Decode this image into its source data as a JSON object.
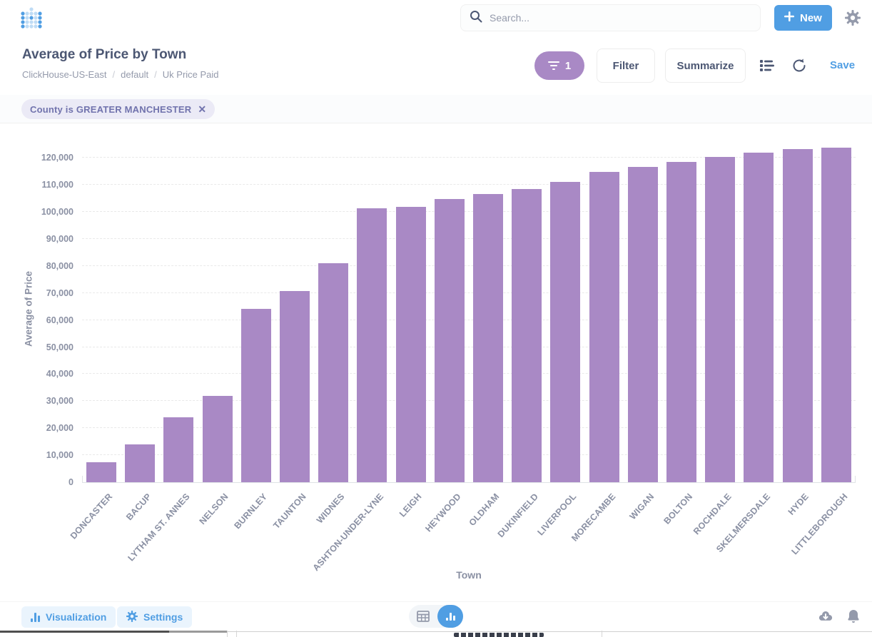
{
  "nav": {
    "search_placeholder": "Search...",
    "new_button_label": "New"
  },
  "header": {
    "title": "Average of Price by Town",
    "breadcrumb": [
      "ClickHouse-US-East",
      "default",
      "Uk Price Paid"
    ],
    "breadcrumb_separator": "/",
    "filter_count": "1",
    "filter_button_label": "Filter",
    "summarize_button_label": "Summarize",
    "save_label": "Save"
  },
  "filters": [
    {
      "label": "County is GREATER MANCHESTER",
      "close_glyph": "✕"
    }
  ],
  "footer": {
    "visualization_button_label": "Visualization",
    "settings_button_label": "Settings"
  },
  "colors": {
    "brand_blue": "#509EE3",
    "bar_purple": "#A989C5",
    "filter_pill": "#A989C5",
    "chip_bg": "#EBEAF6",
    "chip_text": "#7173AD",
    "title_text": "#4C5773",
    "muted_text": "#949AAB",
    "axis_text": "#8A90A3"
  },
  "chart_data": {
    "type": "bar",
    "title": "Average of Price by Town",
    "xlabel": "Town",
    "ylabel": "Average of Price",
    "ylim": [
      0,
      128500
    ],
    "y_ticks": [
      0,
      10000,
      20000,
      30000,
      40000,
      50000,
      60000,
      70000,
      80000,
      90000,
      100000,
      110000,
      120000
    ],
    "grid": "horizontal dashed",
    "legend": "none",
    "bar_color": "#A989C5",
    "categories": [
      "DONCASTER",
      "BACUP",
      "LYTHAM ST. ANNES",
      "NELSON",
      "BURNLEY",
      "TAUNTON",
      "WIDNES",
      "ASHTON-UNDER-LYNE",
      "LEIGH",
      "HEYWOOD",
      "OLDHAM",
      "DUKINFIELD",
      "LIVERPOOL",
      "MORECAMBE",
      "WIGAN",
      "BOLTON",
      "ROCHDALE",
      "SKELMERSDALE",
      "HYDE",
      "LITTLEBOROUGH"
    ],
    "values": [
      7300,
      14000,
      24100,
      31800,
      64100,
      70700,
      81000,
      101400,
      101900,
      104700,
      106700,
      108400,
      111000,
      114900,
      116700,
      118400,
      120200,
      122000,
      123100,
      123800
    ]
  }
}
